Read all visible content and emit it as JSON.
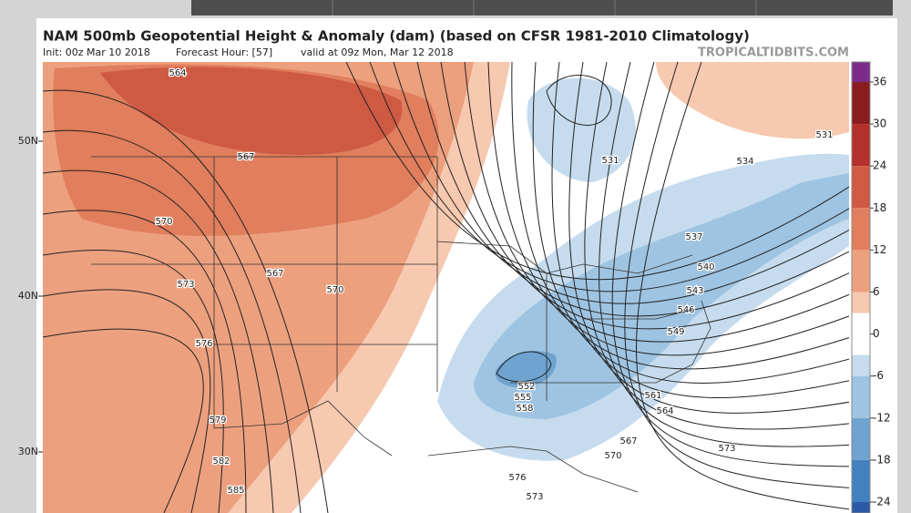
{
  "header": {
    "title": "NAM 500mb Geopotential Height & Anomaly (dam) (based on CFSR 1981-2010 Climatology)",
    "init": "Init: 00z Mar 10 2018",
    "forecast_hour": "Forecast Hour: [57]",
    "valid": "valid at 09z Mon, Mar 12 2018",
    "source": "TROPICALTIDBITS.COM"
  },
  "latitude_labels": [
    "50N",
    "40N",
    "30N"
  ],
  "contour_labels": [
    564,
    567,
    570,
    567,
    570,
    573,
    576,
    579,
    582,
    585,
    531,
    531,
    534,
    537,
    540,
    543,
    546,
    549,
    552,
    555,
    558,
    561,
    564,
    567,
    570,
    573,
    576,
    573
  ],
  "colorbar": {
    "ticks": [
      36,
      30,
      24,
      18,
      12,
      6,
      0,
      -6,
      -12,
      -18,
      -24
    ]
  }
}
